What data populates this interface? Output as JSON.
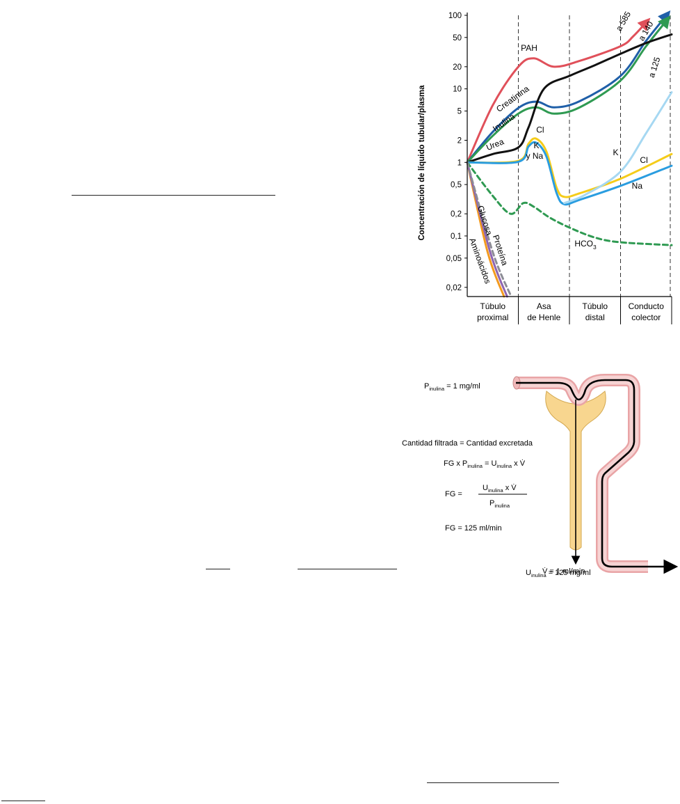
{
  "chart_data": {
    "type": "line",
    "ylabel": "Concentración de líquido tubular/plasma",
    "yscale": "log",
    "ylim": [
      0.015,
      100
    ],
    "yticks": [
      {
        "v": 100,
        "label": "100"
      },
      {
        "v": 50,
        "label": "50"
      },
      {
        "v": 20,
        "label": "20"
      },
      {
        "v": 10,
        "label": "10"
      },
      {
        "v": 5,
        "label": "5"
      },
      {
        "v": 2,
        "label": "2"
      },
      {
        "v": 1,
        "label": "1"
      },
      {
        "v": 0.5,
        "label": "0,5"
      },
      {
        "v": 0.2,
        "label": "0,2"
      },
      {
        "v": 0.1,
        "label": "0,1"
      },
      {
        "v": 0.05,
        "label": "0,05"
      },
      {
        "v": 0.02,
        "label": "0,02"
      }
    ],
    "xlim": [
      0,
      4
    ],
    "segments": [
      {
        "line1": "Túbulo",
        "line2": "proximal"
      },
      {
        "line1": "Asa",
        "line2": "de Henle"
      },
      {
        "line1": "Túbulo",
        "line2": "distal"
      },
      {
        "line1": "Conducto",
        "line2": "colector"
      }
    ],
    "series": [
      {
        "name": "PAH",
        "color": "#e0505a",
        "dashed": false,
        "arrow": true,
        "points": [
          [
            0,
            1
          ],
          [
            0.5,
            6
          ],
          [
            1,
            20
          ],
          [
            1.3,
            26
          ],
          [
            1.7,
            20
          ],
          [
            2.2,
            24
          ],
          [
            3,
            38
          ],
          [
            3.25,
            52
          ],
          [
            3.5,
            80
          ]
        ]
      },
      {
        "name": "Creatinina",
        "color": "#1f5fa8",
        "dashed": false,
        "arrow": true,
        "points": [
          [
            0,
            1
          ],
          [
            0.5,
            2.6
          ],
          [
            1,
            5.5
          ],
          [
            1.35,
            6.7
          ],
          [
            1.7,
            5.6
          ],
          [
            2.2,
            6.8
          ],
          [
            3,
            15
          ],
          [
            3.5,
            45
          ],
          [
            3.9,
            100
          ]
        ]
      },
      {
        "name": "Inulina",
        "color": "#2f9a52",
        "dashed": false,
        "arrow": true,
        "points": [
          [
            0,
            1
          ],
          [
            0.5,
            2.3
          ],
          [
            1,
            4.6
          ],
          [
            1.35,
            5.6
          ],
          [
            1.7,
            4.6
          ],
          [
            2.2,
            5.6
          ],
          [
            3,
            13
          ],
          [
            3.5,
            38
          ],
          [
            3.9,
            85
          ]
        ]
      },
      {
        "name": "Urea",
        "color": "#111111",
        "dashed": false,
        "arrow": false,
        "points": [
          [
            0,
            1
          ],
          [
            0.5,
            1.3
          ],
          [
            1,
            1.6
          ],
          [
            1.2,
            3
          ],
          [
            1.5,
            10
          ],
          [
            2,
            15
          ],
          [
            2.5,
            21
          ],
          [
            3,
            30
          ],
          [
            3.5,
            42
          ],
          [
            4,
            55
          ]
        ]
      },
      {
        "name": "Cl",
        "color": "#f5cc1a",
        "dashed": false,
        "arrow": false,
        "points": [
          [
            0,
            1
          ],
          [
            1,
            1.05
          ],
          [
            1.2,
            1.8
          ],
          [
            1.35,
            2.1
          ],
          [
            1.55,
            1.4
          ],
          [
            1.75,
            0.45
          ],
          [
            1.9,
            0.34
          ],
          [
            2.2,
            0.38
          ],
          [
            3,
            0.6
          ],
          [
            4,
            1.3
          ]
        ]
      },
      {
        "name": "K y Na",
        "color": "#2a9de0",
        "dashed": false,
        "arrow": false,
        "points": [
          [
            0,
            1
          ],
          [
            1,
            1.02
          ],
          [
            1.2,
            1.65
          ],
          [
            1.35,
            1.85
          ],
          [
            1.55,
            1.2
          ],
          [
            1.75,
            0.38
          ],
          [
            1.9,
            0.27
          ],
          [
            2.2,
            0.31
          ],
          [
            3,
            0.48
          ],
          [
            4,
            0.9
          ]
        ]
      },
      {
        "name": "K",
        "color": "#a6d8f2",
        "dashed": false,
        "arrow": false,
        "points": [
          [
            1.9,
            0.28
          ],
          [
            2.3,
            0.36
          ],
          [
            3,
            0.75
          ],
          [
            3.5,
            2.5
          ],
          [
            4,
            9
          ]
        ]
      },
      {
        "name": "HCO3",
        "color": "#2f9a52",
        "dashed": true,
        "arrow": false,
        "points": [
          [
            0,
            1
          ],
          [
            0.5,
            0.35
          ],
          [
            0.85,
            0.2
          ],
          [
            1.1,
            0.28
          ],
          [
            1.3,
            0.25
          ],
          [
            1.6,
            0.18
          ],
          [
            2,
            0.13
          ],
          [
            2.5,
            0.095
          ],
          [
            3,
            0.082
          ],
          [
            4,
            0.075
          ]
        ]
      },
      {
        "name": "Aminoácidos",
        "color": "#f39a1f",
        "dashed": false,
        "arrow": false,
        "points": [
          [
            0,
            1
          ],
          [
            0.4,
            0.06
          ],
          [
            0.72,
            0.015
          ]
        ]
      },
      {
        "name": "Glucosa",
        "color": "#8e65b0",
        "dashed": false,
        "arrow": false,
        "points": [
          [
            0,
            1
          ],
          [
            0.45,
            0.06
          ],
          [
            0.78,
            0.015
          ]
        ]
      },
      {
        "name": "Proteína",
        "color": "#8c8c95",
        "dashed": true,
        "arrow": false,
        "points": [
          [
            0,
            1
          ],
          [
            0.5,
            0.06
          ],
          [
            0.86,
            0.015
          ]
        ]
      }
    ],
    "labels": [
      {
        "text": "PAH",
        "x": 1.05,
        "y": 33,
        "rotate": 0,
        "anchor": "start"
      },
      {
        "text": "Creatinina",
        "x": 0.62,
        "y": 4.8,
        "rotate": -36,
        "anchor": "start"
      },
      {
        "text": "Inulina",
        "x": 0.55,
        "y": 2.6,
        "rotate": -35,
        "anchor": "start"
      },
      {
        "text": "Urea",
        "x": 0.4,
        "y": 1.45,
        "rotate": -22,
        "anchor": "start"
      },
      {
        "text": "Cl",
        "x": 1.35,
        "y": 2.55,
        "rotate": 0,
        "anchor": "start"
      },
      {
        "text": "K",
        "x": 1.3,
        "y": 1.55,
        "rotate": 0,
        "anchor": "start"
      },
      {
        "text": "y Na",
        "x": 1.15,
        "y": 1.12,
        "rotate": 0,
        "anchor": "start"
      },
      {
        "text": "K",
        "x": 2.85,
        "y": 1.25,
        "rotate": 0,
        "anchor": "start"
      },
      {
        "text": "Cl",
        "x": 3.38,
        "y": 0.98,
        "rotate": 0,
        "anchor": "start"
      },
      {
        "text": "Na",
        "x": 3.22,
        "y": 0.44,
        "rotate": 0,
        "anchor": "start"
      },
      {
        "text": "HCO",
        "x": 2.1,
        "y": 0.072,
        "rotate": 0,
        "anchor": "start",
        "sub": "3"
      },
      {
        "text": "Glucosa",
        "x": 0.2,
        "y": 0.25,
        "rotate": 72,
        "anchor": "start"
      },
      {
        "text": "Proteína",
        "x": 0.5,
        "y": 0.1,
        "rotate": 72,
        "anchor": "start"
      },
      {
        "text": "Aminoácidos",
        "x": 0.04,
        "y": 0.09,
        "rotate": 70,
        "anchor": "start"
      },
      {
        "text": "a 585",
        "x": 3.0,
        "y": 60,
        "rotate": -60,
        "anchor": "start"
      },
      {
        "text": "a 140",
        "x": 3.44,
        "y": 44,
        "rotate": -60,
        "anchor": "start"
      },
      {
        "text": "a 125",
        "x": 3.65,
        "y": 14,
        "rotate": -72,
        "anchor": "start"
      }
    ]
  },
  "nephron": {
    "p_inulina": {
      "main": "P",
      "sub": "inulina",
      "rest": " = 1 mg/ml"
    },
    "cantidad": "Cantidad filtrada = Cantidad excretada",
    "eq1": {
      "a": "FG x P",
      "a_sub": "inulina",
      "b": " = U",
      "b_sub": "inulina",
      "c": " x V̇"
    },
    "eq2": {
      "lhs": "FG = ",
      "num": "U",
      "num_sub": "inulina",
      "num_rest": " x V̇",
      "den": "P",
      "den_sub": "inulina"
    },
    "eq3": "FG = 125 ml/min",
    "u_inulina": {
      "main": "U",
      "sub": "inulina",
      "rest": " = 125 mg/ml"
    },
    "v": "V̇ = 1 ml/min"
  }
}
